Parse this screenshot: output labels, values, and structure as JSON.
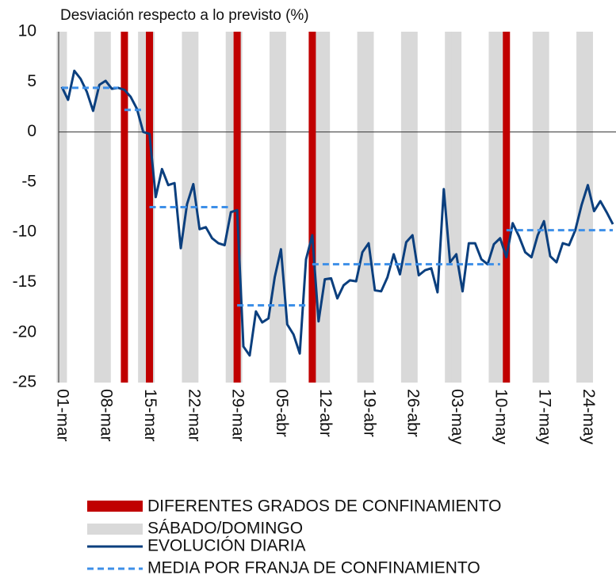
{
  "chart_data": {
    "type": "line",
    "y_label": "Desviación respecto a lo previsto (%)",
    "categories": [
      "01-mar",
      null,
      null,
      null,
      null,
      null,
      null,
      "08-mar",
      null,
      null,
      null,
      null,
      null,
      null,
      "15-mar",
      null,
      null,
      null,
      null,
      null,
      null,
      "22-mar",
      null,
      null,
      null,
      null,
      null,
      null,
      "29-mar",
      null,
      null,
      null,
      null,
      null,
      null,
      "05-abr",
      null,
      null,
      null,
      null,
      null,
      null,
      "12-abr",
      null,
      null,
      null,
      null,
      null,
      null,
      "19-abr",
      null,
      null,
      null,
      null,
      null,
      null,
      "26-abr",
      null,
      null,
      null,
      null,
      null,
      null,
      "03-may",
      null,
      null,
      null,
      null,
      null,
      null,
      "10-may",
      null,
      null,
      null,
      null,
      null,
      null,
      "17-may",
      null,
      null,
      null,
      null,
      null,
      null,
      "24-may",
      null,
      null,
      null,
      null
    ],
    "series": [
      {
        "name": "EVOLUCIÓN DIARIA",
        "color": "#0b3f7e",
        "values": [
          4.5,
          3.2,
          6.1,
          5.3,
          4.0,
          2.1,
          4.7,
          5.1,
          4.3,
          4.4,
          4.2,
          3.5,
          2.3,
          0.0,
          -0.2,
          -6.5,
          -3.7,
          -5.3,
          -5.1,
          -11.6,
          -7.2,
          -5.2,
          -9.7,
          -9.5,
          -10.6,
          -11.1,
          -11.3,
          -8.0,
          -7.8,
          -21.4,
          -22.3,
          -17.9,
          -19.0,
          -18.6,
          -14.5,
          -11.7,
          -19.2,
          -20.2,
          -22.1,
          -12.7,
          -10.3,
          -18.9,
          -14.7,
          -14.6,
          -16.6,
          -15.3,
          -14.8,
          -14.9,
          -12.0,
          -11.1,
          -15.8,
          -15.9,
          -14.5,
          -12.2,
          -14.2,
          -11.0,
          -10.3,
          -14.3,
          -13.8,
          -13.6,
          -16.0,
          -5.7,
          -13.0,
          -12.2,
          -15.9,
          -11.1,
          -11.1,
          -12.7,
          -13.2,
          -11.2,
          -10.6,
          -12.5,
          -9.1,
          -10.4,
          -12.0,
          -12.5,
          -10.3,
          -8.9,
          -12.4,
          -13.0,
          -11.1,
          -11.3,
          -9.8,
          -7.3,
          -5.3,
          -7.9,
          -6.9,
          -8.0,
          -9.2
        ]
      },
      {
        "name": "MEDIA POR FRANJA DE CONFINAMIENTO",
        "color": "#3d8fe8",
        "dashed": true,
        "values": [
          4.4,
          4.4,
          4.4,
          4.4,
          4.4,
          4.4,
          4.4,
          4.4,
          4.4,
          4.4,
          2.2,
          2.2,
          2.2,
          2.2,
          -7.5,
          -7.5,
          -7.5,
          -7.5,
          -7.5,
          -7.5,
          -7.5,
          -7.5,
          -7.5,
          -7.5,
          -7.5,
          -7.5,
          -7.5,
          -7.5,
          -17.3,
          -17.3,
          -17.3,
          -17.3,
          -17.3,
          -17.3,
          -17.3,
          -17.3,
          -17.3,
          -17.3,
          -17.3,
          -17.3,
          -13.2,
          -13.2,
          -13.2,
          -13.2,
          -13.2,
          -13.2,
          -13.2,
          -13.2,
          -13.2,
          -13.2,
          -13.2,
          -13.2,
          -13.2,
          -13.2,
          -13.2,
          -13.2,
          -13.2,
          -13.2,
          -13.2,
          -13.2,
          -13.2,
          -13.2,
          -13.2,
          -13.2,
          -13.2,
          -13.2,
          -13.2,
          -13.2,
          -13.2,
          -13.2,
          -13.2,
          -9.8,
          -9.8,
          -9.8,
          -9.8,
          -9.8,
          -9.8,
          -9.8,
          -9.8,
          -9.8,
          -9.8,
          -9.8,
          -9.8,
          -9.8,
          -9.8,
          -9.8,
          -9.8,
          -9.8,
          -9.8
        ]
      }
    ],
    "weekends": {
      "name": "SÁBADO/DOMINGO",
      "color": "#d9d9d9",
      "x": [
        0,
        6,
        7,
        13,
        14,
        20,
        21,
        27,
        28,
        34,
        35,
        41,
        42,
        48,
        49,
        55,
        56,
        62,
        63,
        69,
        70,
        76,
        77,
        83,
        84
      ]
    },
    "changes": {
      "name": "DIFERENTES GRADOS DE CONFINAMIENTO",
      "color": "#c00000",
      "x": [
        10,
        14,
        28,
        40,
        71
      ]
    },
    "ylim": [
      -25,
      10
    ],
    "yticks": [
      -25,
      -20,
      -15,
      -10,
      -5,
      0,
      5,
      10
    ]
  }
}
